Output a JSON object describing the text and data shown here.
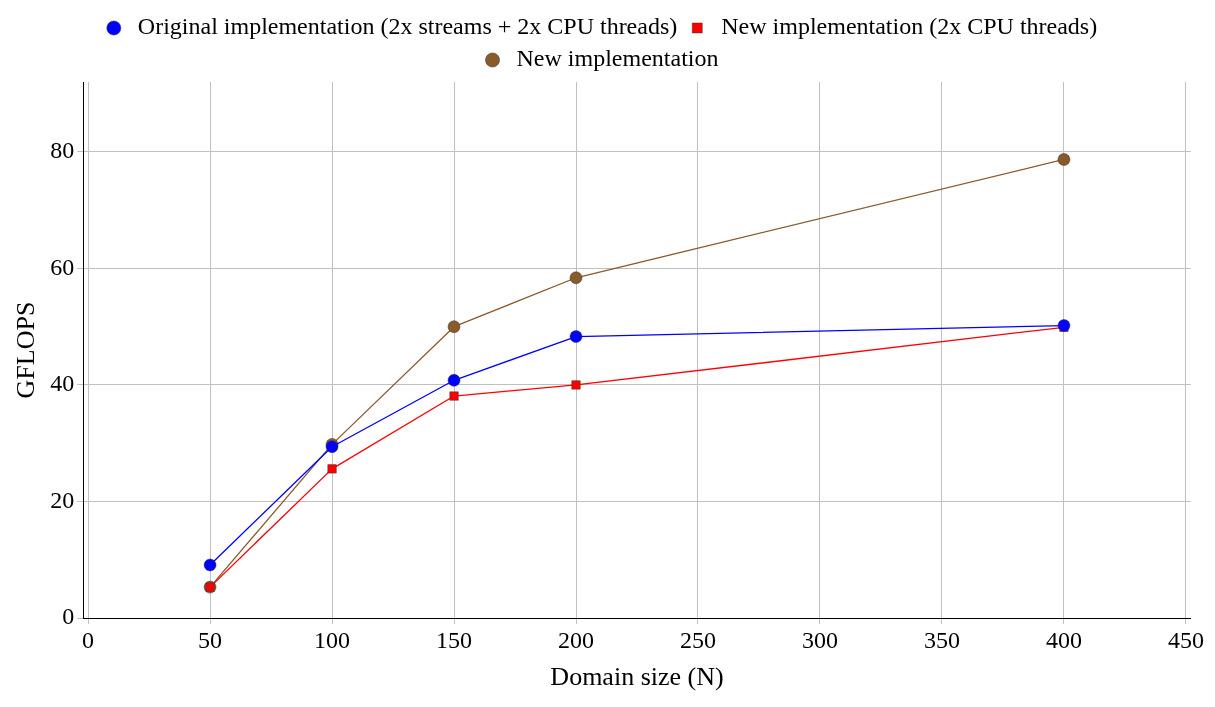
{
  "chart_data": {
    "type": "line",
    "xlabel": "Domain size (N)",
    "ylabel": "GFLOPS",
    "x": [
      50,
      100,
      150,
      200,
      400
    ],
    "series": [
      {
        "name": "Original implementation (2x streams + 2x CPU threads)",
        "color": "#0000ff",
        "marker": "circle",
        "values": [
          9.1,
          29.4,
          40.8,
          48.3,
          50.2
        ]
      },
      {
        "name": "New implementation (2x CPU threads)",
        "color": "#ff0000",
        "marker": "square",
        "values": [
          5.3,
          25.6,
          38.1,
          40.0,
          49.9
        ]
      },
      {
        "name": "New implementation",
        "color": "#8b5a2b",
        "marker": "circle",
        "values": [
          5.3,
          29.8,
          50.0,
          58.4,
          78.7
        ]
      }
    ],
    "xlim": [
      -2,
      452
    ],
    "xticks": [
      0,
      50,
      100,
      150,
      200,
      250,
      300,
      350,
      400,
      450
    ],
    "ylim": [
      0,
      92
    ],
    "yticks": [
      0,
      20,
      40,
      60,
      80
    ],
    "grid": true,
    "legend": "top"
  }
}
